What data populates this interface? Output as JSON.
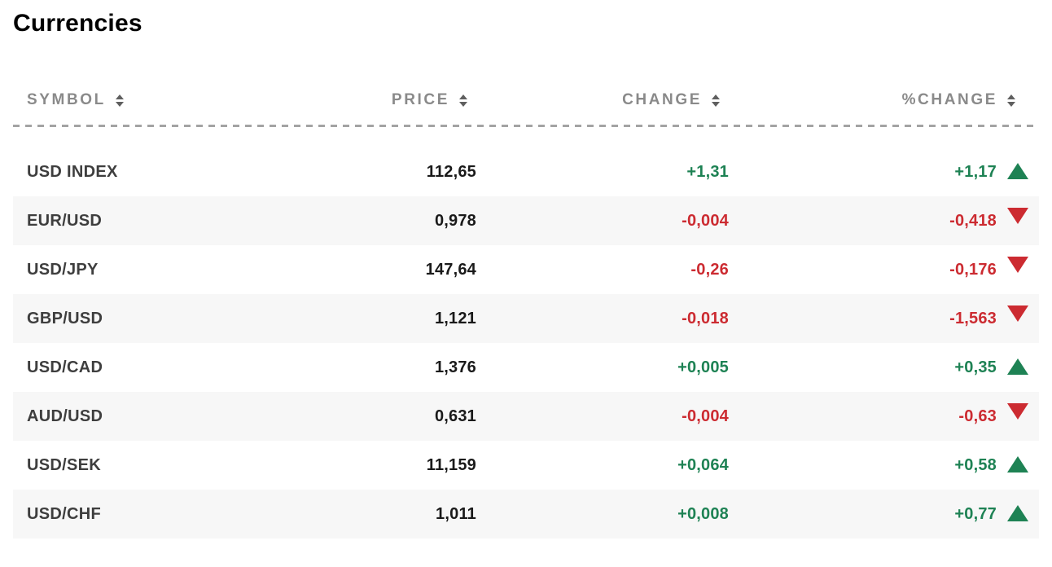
{
  "page": {
    "title": "Currencies"
  },
  "table": {
    "columns": [
      {
        "key": "symbol",
        "label": "SYMBOL",
        "sortable": true,
        "align": "left"
      },
      {
        "key": "price",
        "label": "PRICE",
        "sortable": true,
        "align": "right"
      },
      {
        "key": "change",
        "label": "CHANGE",
        "sortable": true,
        "align": "right"
      },
      {
        "key": "pct_change",
        "label": "%CHANGE",
        "sortable": true,
        "align": "right"
      }
    ],
    "rows": [
      {
        "symbol": "USD INDEX",
        "price": "112,65",
        "change": "+1,31",
        "pct_change": "+1,17",
        "direction": "up"
      },
      {
        "symbol": "EUR/USD",
        "price": "0,978",
        "change": "-0,004",
        "pct_change": "-0,418",
        "direction": "down"
      },
      {
        "symbol": "USD/JPY",
        "price": "147,64",
        "change": "-0,26",
        "pct_change": "-0,176",
        "direction": "down"
      },
      {
        "symbol": "GBP/USD",
        "price": "1,121",
        "change": "-0,018",
        "pct_change": "-1,563",
        "direction": "down"
      },
      {
        "symbol": "USD/CAD",
        "price": "1,376",
        "change": "+0,005",
        "pct_change": "+0,35",
        "direction": "up"
      },
      {
        "symbol": "AUD/USD",
        "price": "0,631",
        "change": "-0,004",
        "pct_change": "-0,63",
        "direction": "down"
      },
      {
        "symbol": "USD/SEK",
        "price": "11,159",
        "change": "+0,064",
        "pct_change": "+0,58",
        "direction": "up"
      },
      {
        "symbol": "USD/CHF",
        "price": "1,011",
        "change": "+0,008",
        "pct_change": "+0,77",
        "direction": "up"
      }
    ],
    "icons": {
      "sort": "sort-arrows",
      "up": "triangle-up",
      "down": "triangle-down"
    },
    "colors": {
      "up": "#1e8254",
      "down": "#cc2b31",
      "header_text": "#8a8a8a",
      "symbol_text": "#3e3e3e",
      "price_text": "#1a1a1a",
      "row_alt_bg": "#f7f7f7",
      "divider": "#a3a3a3"
    }
  }
}
